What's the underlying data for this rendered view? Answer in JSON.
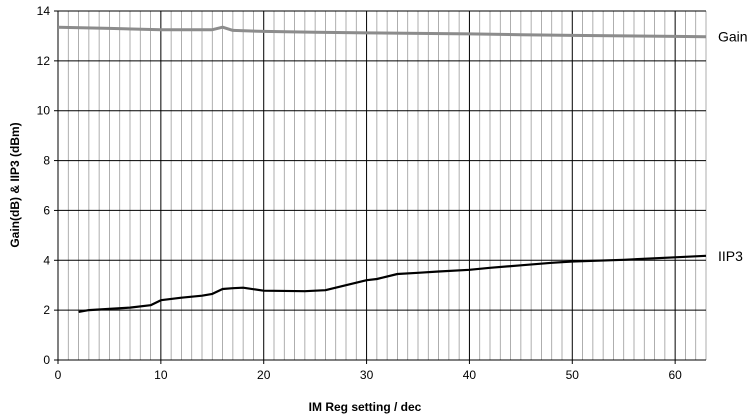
{
  "chart_data": {
    "type": "line",
    "title": "",
    "xlabel": "IM Reg setting / dec",
    "ylabel": "Gain(dB) & IIP3 (dBm)",
    "xlim": [
      0,
      63
    ],
    "ylim": [
      0,
      14
    ],
    "x_ticks": [
      0,
      10,
      20,
      30,
      40,
      50,
      60
    ],
    "y_ticks": [
      0,
      2,
      4,
      6,
      8,
      10,
      12,
      14
    ],
    "grid": {
      "vertical_minor_step": 1,
      "horizontal_step": 2
    },
    "legend": "labels at right end of each line",
    "series": [
      {
        "name": "Gain",
        "color": "#8c8c8c",
        "x": [
          0,
          5,
          10,
          15,
          16,
          17,
          20,
          25,
          30,
          35,
          40,
          45,
          50,
          55,
          60,
          63
        ],
        "y": [
          13.35,
          13.3,
          13.25,
          13.25,
          13.35,
          13.22,
          13.18,
          13.15,
          13.12,
          13.1,
          13.08,
          13.05,
          13.02,
          13.0,
          12.98,
          12.97
        ]
      },
      {
        "name": "IIP3",
        "color": "#000000",
        "x": [
          2,
          3,
          5,
          7,
          9,
          10,
          12,
          14,
          15,
          16,
          17,
          18,
          20,
          24,
          26,
          28,
          30,
          31,
          33,
          35,
          37,
          40,
          42,
          45,
          48,
          50,
          55,
          60,
          63
        ],
        "y": [
          1.93,
          2.0,
          2.05,
          2.1,
          2.2,
          2.4,
          2.5,
          2.58,
          2.65,
          2.85,
          2.88,
          2.9,
          2.78,
          2.76,
          2.8,
          3.0,
          3.2,
          3.25,
          3.45,
          3.5,
          3.55,
          3.62,
          3.7,
          3.8,
          3.9,
          3.95,
          4.02,
          4.12,
          4.18
        ]
      }
    ]
  }
}
